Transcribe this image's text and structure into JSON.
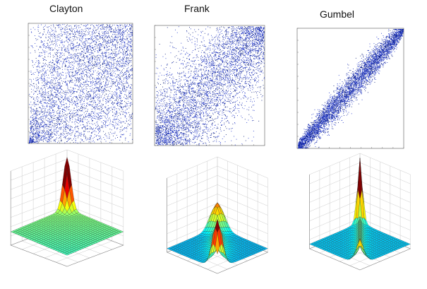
{
  "titles": {
    "clayton": "Clayton",
    "frank": "Frank",
    "gumbel": "Gumbel"
  },
  "colors": {
    "scatter": "#1f35c9",
    "scatter_dark": "#0d1f7a",
    "background": "#ffffff"
  },
  "chart_data": [
    {
      "type": "scatter",
      "title": "Clayton",
      "xlim": [
        0,
        1
      ],
      "ylim": [
        0,
        1
      ],
      "points": 5000,
      "dependence": "lower-tail",
      "grid": false
    },
    {
      "type": "scatter",
      "title": "Frank",
      "xlim": [
        0,
        1
      ],
      "ylim": [
        0,
        1
      ],
      "points": 5000,
      "dependence": "symmetric",
      "grid": false
    },
    {
      "type": "scatter",
      "title": "Gumbel",
      "xlim": [
        0,
        1
      ],
      "ylim": [
        0,
        1
      ],
      "points": 5000,
      "dependence": "upper-tail",
      "grid": false
    },
    {
      "type": "surface",
      "title": "",
      "family": "Clayton",
      "xlim": [
        0,
        1
      ],
      "ylim": [
        0,
        1
      ],
      "zlim": [
        0,
        8
      ],
      "grid": true
    },
    {
      "type": "surface",
      "title": "",
      "family": "Frank",
      "xlim": [
        0,
        1
      ],
      "ylim": [
        0,
        1
      ],
      "zlim": [
        0,
        8
      ],
      "grid": true
    },
    {
      "type": "surface",
      "title": "",
      "family": "Gumbel",
      "xlim": [
        0,
        1
      ],
      "ylim": [
        0,
        1
      ],
      "zlim": [
        0,
        8
      ],
      "grid": true
    }
  ]
}
